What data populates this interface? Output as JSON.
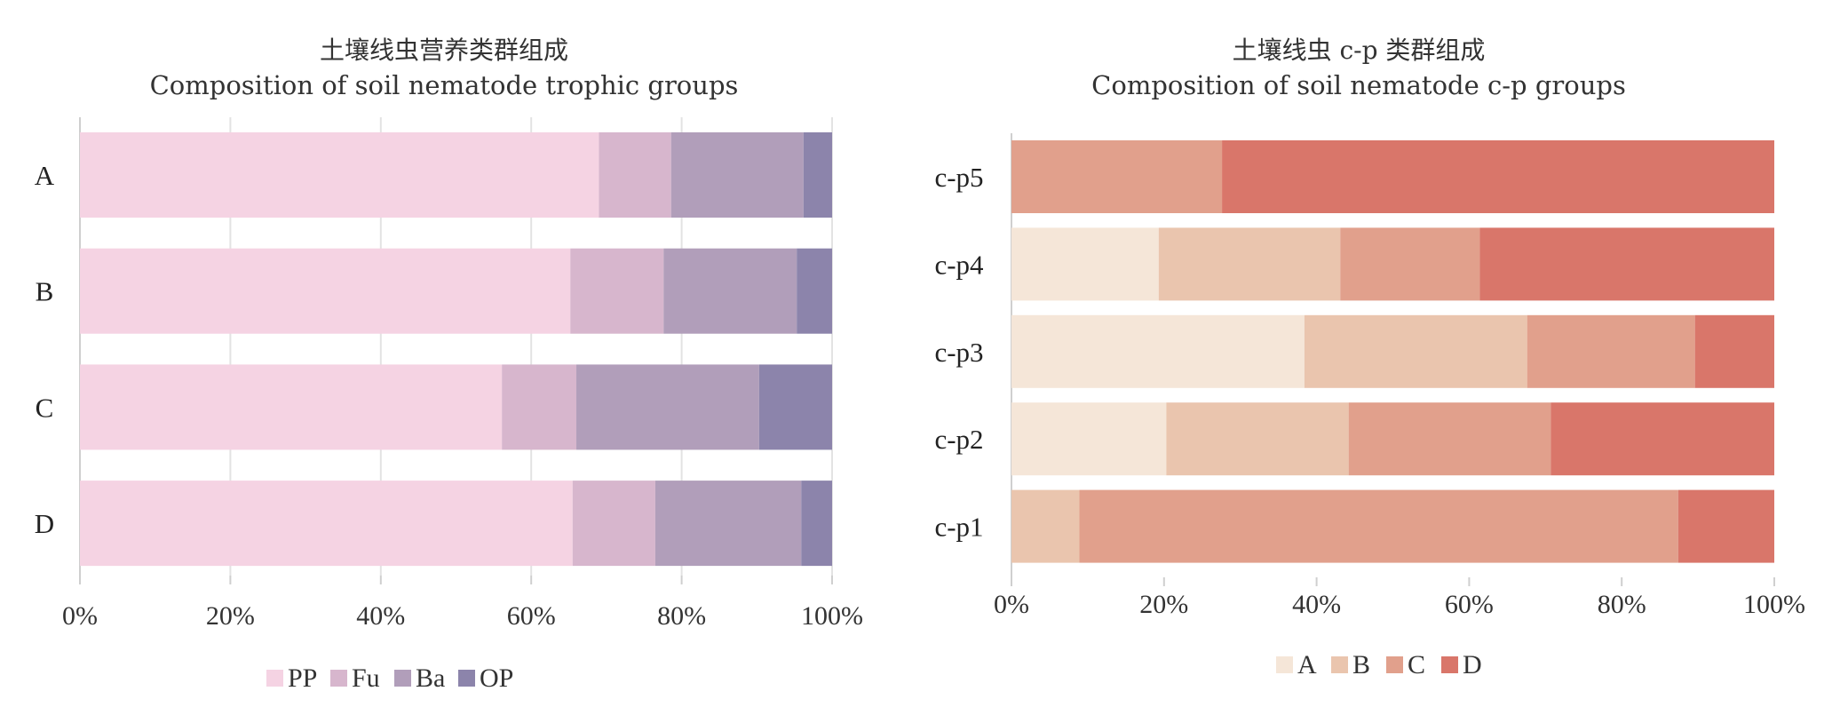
{
  "chart_data": [
    {
      "type": "bar",
      "stacked": "percent",
      "orientation": "horizontal",
      "title": "土壤线虫营养类群组成",
      "subtitle": "Composition of soil nematode trophic groups",
      "categories": [
        "A",
        "B",
        "C",
        "D"
      ],
      "series": [
        {
          "name": "PP",
          "color": "#F5D3E3",
          "values": [
            69,
            65.2,
            56.1,
            65.5
          ]
        },
        {
          "name": "Fu",
          "color": "#D7B6CD",
          "values": [
            9.6,
            12.4,
            9.9,
            11
          ]
        },
        {
          "name": "Ba",
          "color": "#B19EBA",
          "values": [
            17.6,
            17.7,
            24.3,
            19.4
          ]
        },
        {
          "name": "OP",
          "color": "#8C84AB",
          "values": [
            3.8,
            4.7,
            9.7,
            4.1
          ]
        }
      ],
      "xlim": [
        0,
        100
      ],
      "xticks": [
        "0%",
        "20%",
        "40%",
        "60%",
        "80%",
        "100%"
      ],
      "grid": true,
      "legend": "bottom"
    },
    {
      "type": "bar",
      "stacked": "percent",
      "orientation": "horizontal",
      "title": "土壤线虫 c-p 类群组成",
      "subtitle": "Composition of soil nematode c-p groups",
      "categories": [
        "c-p5",
        "c-p4",
        "c-p3",
        "c-p2",
        "c-p1"
      ],
      "series": [
        {
          "name": "A",
          "color": "#F5E6D8",
          "values": [
            0,
            19.3,
            38.4,
            20.3,
            0
          ]
        },
        {
          "name": "B",
          "color": "#EAC5AE",
          "values": [
            0,
            23.8,
            29.2,
            23.9,
            8.9
          ]
        },
        {
          "name": "C",
          "color": "#E1A08C",
          "values": [
            27.6,
            18.3,
            22,
            26.5,
            78.5
          ]
        },
        {
          "name": "D",
          "color": "#D9766A",
          "values": [
            72.4,
            38.6,
            10.4,
            29.3,
            12.6
          ]
        }
      ],
      "xlim": [
        0,
        100
      ],
      "xticks": [
        "0%",
        "20%",
        "40%",
        "60%",
        "80%",
        "100%"
      ],
      "grid": false,
      "legend": "bottom"
    }
  ]
}
